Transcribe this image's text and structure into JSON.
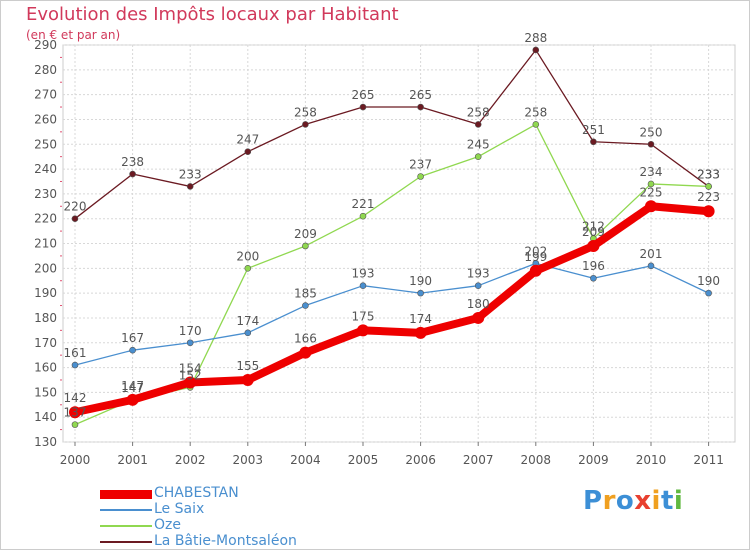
{
  "chart_data": {
    "type": "line",
    "title": "Evolution des Impôts locaux par Habitant",
    "subtitle": "(en € et par an)",
    "xlabel": "",
    "ylabel": "",
    "x": [
      "2000",
      "2001",
      "2002",
      "2003",
      "2004",
      "2005",
      "2006",
      "2007",
      "2008",
      "2009",
      "2010",
      "2011"
    ],
    "ylim": [
      130,
      290
    ],
    "yticks": [
      "130",
      "140",
      "150",
      "160",
      "170",
      "180",
      "190",
      "200",
      "210",
      "220",
      "230",
      "240",
      "250",
      "260",
      "270",
      "280",
      "290"
    ],
    "grid": true,
    "legend_position": "bottom-left",
    "series": [
      {
        "name": "La Bâtie-Montsaléon",
        "color": "#6b1a22",
        "values": [
          220,
          238,
          233,
          247,
          258,
          265,
          265,
          258,
          288,
          251,
          250,
          233
        ],
        "labels": [
          "220",
          "238",
          "233",
          "247",
          "258",
          "265",
          "265",
          "258",
          "288",
          "251",
          "250",
          "233"
        ]
      },
      {
        "name": "Oze",
        "color": "#90d850",
        "values": [
          137,
          147,
          152,
          200,
          209,
          221,
          237,
          245,
          258,
          212,
          234,
          233
        ],
        "labels": [
          "137",
          "147",
          "152",
          "200",
          "209",
          "221",
          "237",
          "245",
          "258",
          "212",
          "234",
          "233"
        ]
      },
      {
        "name": "Le Saix",
        "color": "#4a8fcf",
        "values": [
          161,
          167,
          170,
          174,
          185,
          193,
          190,
          193,
          202,
          196,
          201,
          190
        ],
        "labels": [
          "161",
          "167",
          "170",
          "174",
          "185",
          "193",
          "190",
          "193",
          "202",
          "196",
          "201",
          "190"
        ]
      },
      {
        "name": "CHABESTAN",
        "color": "#ee0000",
        "values": [
          142,
          147,
          154,
          155,
          166,
          175,
          174,
          180,
          199,
          209,
          225,
          223
        ],
        "labels": [
          "142",
          "147",
          "154",
          "155",
          "166",
          "175",
          "174",
          "180",
          "199",
          "209",
          "225",
          "223"
        ]
      }
    ]
  },
  "legend": {
    "items": [
      {
        "label": "CHABESTAN",
        "color": "#ee0000",
        "text_color": "#4a8fcf"
      },
      {
        "label": "Le Saix",
        "color": "#4a8fcf",
        "text_color": "#4a8fcf"
      },
      {
        "label": "Oze",
        "color": "#90d850",
        "text_color": "#4a8fcf"
      },
      {
        "label": "La Bâtie-Montsaléon",
        "color": "#6b1a22",
        "text_color": "#4a8fcf"
      }
    ]
  },
  "logo": {
    "text": "Proxiti",
    "letters": [
      {
        "ch": "P",
        "color": "#3c8fd6"
      },
      {
        "ch": "r",
        "color": "#f0a020"
      },
      {
        "ch": "o",
        "color": "#3c8fd6"
      },
      {
        "ch": "x",
        "color": "#e84030"
      },
      {
        "ch": "i",
        "color": "#f0a020"
      },
      {
        "ch": "t",
        "color": "#3c8fd6"
      },
      {
        "ch": "i",
        "color": "#60b840"
      }
    ]
  }
}
